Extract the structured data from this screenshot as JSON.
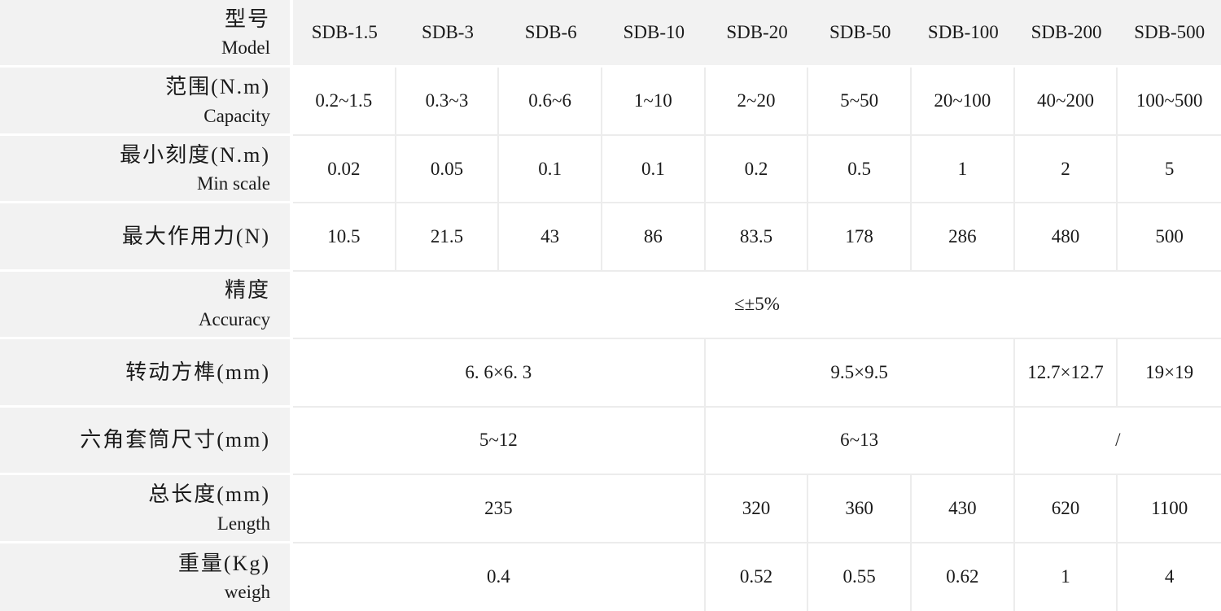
{
  "table": {
    "header": {
      "label_zh": "型号",
      "label_en": "Model",
      "models": [
        "SDB-1.5",
        "SDB-3",
        "SDB-6",
        "SDB-10",
        "SDB-20",
        "SDB-50",
        "SDB-100",
        "SDB-200",
        "SDB-500"
      ]
    },
    "rows": [
      {
        "label_zh": "范围(N.m)",
        "label_en": "Capacity",
        "cells": [
          {
            "value": "0.2~1.5",
            "span": 1
          },
          {
            "value": "0.3~3",
            "span": 1
          },
          {
            "value": "0.6~6",
            "span": 1
          },
          {
            "value": "1~10",
            "span": 1
          },
          {
            "value": "2~20",
            "span": 1
          },
          {
            "value": "5~50",
            "span": 1
          },
          {
            "value": "20~100",
            "span": 1
          },
          {
            "value": "40~200",
            "span": 1
          },
          {
            "value": "100~500",
            "span": 1
          }
        ]
      },
      {
        "label_zh": "最小刻度(N.m)",
        "label_en": "Min scale",
        "cells": [
          {
            "value": "0.02",
            "span": 1
          },
          {
            "value": "0.05",
            "span": 1
          },
          {
            "value": "0.1",
            "span": 1
          },
          {
            "value": "0.1",
            "span": 1
          },
          {
            "value": "0.2",
            "span": 1
          },
          {
            "value": "0.5",
            "span": 1
          },
          {
            "value": "1",
            "span": 1
          },
          {
            "value": "2",
            "span": 1
          },
          {
            "value": "5",
            "span": 1
          }
        ]
      },
      {
        "label_zh": "最大作用力(N)",
        "label_en": "",
        "cells": [
          {
            "value": "10.5",
            "span": 1
          },
          {
            "value": "21.5",
            "span": 1
          },
          {
            "value": "43",
            "span": 1
          },
          {
            "value": "86",
            "span": 1
          },
          {
            "value": "83.5",
            "span": 1
          },
          {
            "value": "178",
            "span": 1
          },
          {
            "value": "286",
            "span": 1
          },
          {
            "value": "480",
            "span": 1
          },
          {
            "value": "500",
            "span": 1
          }
        ]
      },
      {
        "label_zh": "精度",
        "label_en": "Accuracy",
        "cells": [
          {
            "value": "≤±5%",
            "span": 9
          }
        ]
      },
      {
        "label_zh": "转动方榫(mm)",
        "label_en": "",
        "cells": [
          {
            "value": "6. 6×6. 3",
            "span": 4
          },
          {
            "value": "9.5×9.5",
            "span": 3
          },
          {
            "value": "12.7×12.7",
            "span": 1
          },
          {
            "value": "19×19",
            "span": 1
          }
        ]
      },
      {
        "label_zh": "六角套筒尺寸(mm)",
        "label_en": "",
        "cells": [
          {
            "value": "5~12",
            "span": 4
          },
          {
            "value": "6~13",
            "span": 3
          },
          {
            "value": "/",
            "span": 2
          }
        ]
      },
      {
        "label_zh": "总长度(mm)",
        "label_en": "Length",
        "cells": [
          {
            "value": "235",
            "span": 4
          },
          {
            "value": "320",
            "span": 1
          },
          {
            "value": "360",
            "span": 1
          },
          {
            "value": "430",
            "span": 1
          },
          {
            "value": "620",
            "span": 1
          },
          {
            "value": "1100",
            "span": 1
          }
        ]
      },
      {
        "label_zh": "重量(Kg)",
        "label_en": "weigh",
        "cells": [
          {
            "value": "0.4",
            "span": 4
          },
          {
            "value": "0.52",
            "span": 1
          },
          {
            "value": "0.55",
            "span": 1
          },
          {
            "value": "0.62",
            "span": 1
          },
          {
            "value": "1",
            "span": 1
          },
          {
            "value": "4",
            "span": 1
          }
        ]
      }
    ],
    "colors": {
      "label_background": "#f2f2f2",
      "cell_background": "#ffffff",
      "grid_line": "#ececec",
      "text": "#1a1a1a"
    }
  }
}
